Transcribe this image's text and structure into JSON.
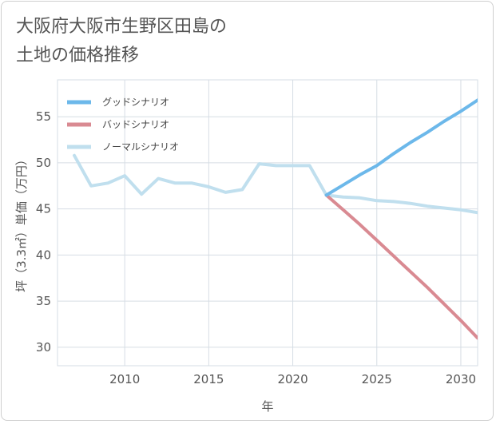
{
  "title_line1": "大阪府大阪市生野区田島の",
  "title_line2": "土地の価格推移",
  "chart_data": {
    "type": "line",
    "xlabel": "年",
    "ylabel": "坪（3.3㎡）単価（万円）",
    "xlim": [
      2006,
      2031
    ],
    "ylim": [
      28,
      59
    ],
    "xticks": [
      2010,
      2015,
      2020,
      2025,
      2030
    ],
    "yticks": [
      30,
      35,
      40,
      45,
      50,
      55
    ],
    "grid": true,
    "legend_position": "top-left",
    "series": [
      {
        "name": "グッドシナリオ",
        "color": "#6cb8ea",
        "x": [
          2022,
          2023,
          2024,
          2025,
          2026,
          2027,
          2028,
          2029,
          2030,
          2031
        ],
        "y": [
          46.5,
          47.6,
          48.7,
          49.7,
          51.0,
          52.2,
          53.3,
          54.5,
          55.6,
          56.8
        ]
      },
      {
        "name": "バッドシナリオ",
        "color": "#d98a92",
        "x": [
          2022,
          2023,
          2024,
          2025,
          2026,
          2027,
          2028,
          2029,
          2030,
          2031
        ],
        "y": [
          46.5,
          44.9,
          43.3,
          41.6,
          39.9,
          38.2,
          36.5,
          34.7,
          32.9,
          31.0
        ]
      },
      {
        "name": "ノーマルシナリオ",
        "color": "#c0dfee",
        "x": [
          2007,
          2008,
          2009,
          2010,
          2011,
          2012,
          2013,
          2014,
          2015,
          2016,
          2017,
          2018,
          2019,
          2020,
          2021,
          2022,
          2023,
          2024,
          2025,
          2026,
          2027,
          2028,
          2029,
          2030,
          2031
        ],
        "y": [
          50.8,
          47.5,
          47.8,
          48.6,
          46.6,
          48.3,
          47.8,
          47.8,
          47.4,
          46.8,
          47.1,
          49.9,
          49.7,
          49.7,
          49.7,
          46.5,
          46.3,
          46.2,
          45.9,
          45.8,
          45.6,
          45.3,
          45.1,
          44.9,
          44.6
        ]
      }
    ]
  }
}
